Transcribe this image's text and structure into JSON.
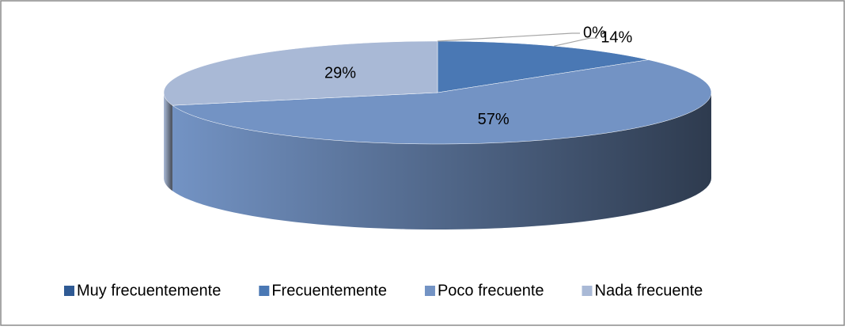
{
  "chart_data": {
    "type": "pie",
    "is_3d": true,
    "categories": [
      "Muy frecuentemente",
      "Frecuentemente",
      "Poco frecuente",
      "Nada frecuente"
    ],
    "values": [
      0,
      14,
      57,
      29
    ],
    "value_labels": [
      "0%",
      "14%",
      "57%",
      "29%"
    ],
    "colors": [
      "#2f5a94",
      "#4a78b4",
      "#7393c4",
      "#a9b9d6"
    ],
    "legend": "bottom"
  }
}
